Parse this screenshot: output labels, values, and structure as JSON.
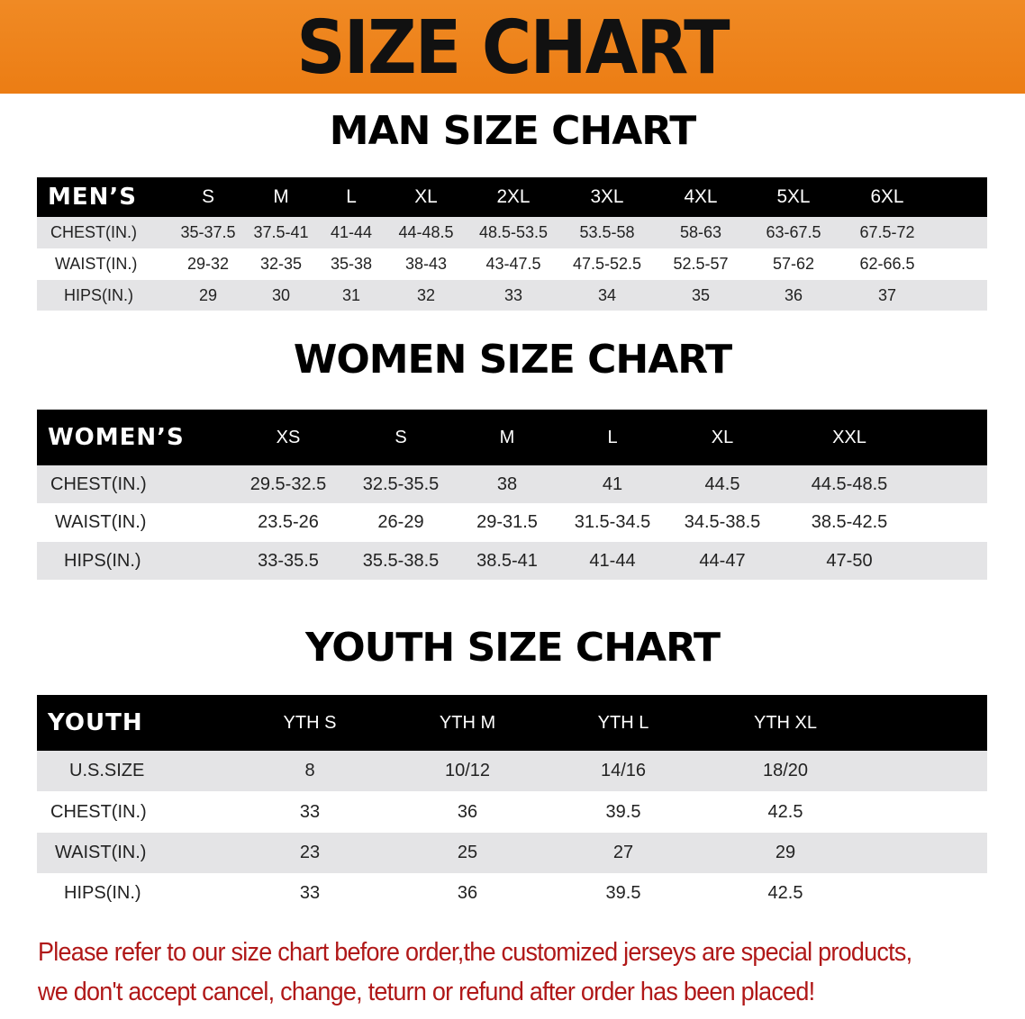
{
  "banner": {
    "title": "SIZE CHART",
    "color": "#ef8420"
  },
  "men": {
    "title": "MAN SIZE CHART",
    "header": "MEN’S",
    "columns": [
      "S",
      "M",
      "L",
      "XL",
      "2XL",
      "3XL",
      "4XL",
      "5XL",
      "6XL"
    ],
    "rows": [
      {
        "label": "CHEST(IN.)",
        "values": [
          "35-37.5",
          "37.5-41",
          "41-44",
          "44-48.5",
          "48.5-53.5",
          "53.5-58",
          "58-63",
          "63-67.5",
          "67.5-72"
        ]
      },
      {
        "label": "WAIST(IN.)",
        "values": [
          "29-32",
          "32-35",
          "35-38",
          "38-43",
          "43-47.5",
          "47.5-52.5",
          "52.5-57",
          "57-62",
          "62-66.5"
        ]
      },
      {
        "label": "HIPS(IN.)",
        "values": [
          "29",
          "30",
          "31",
          "32",
          "33",
          "34",
          "35",
          "36",
          "37"
        ]
      }
    ]
  },
  "women": {
    "title": "WOMEN SIZE CHART",
    "header": "WOMEN’S",
    "columns": [
      "XS",
      "S",
      "M",
      "L",
      "XL",
      "XXL"
    ],
    "rows": [
      {
        "label": "CHEST(IN.)",
        "values": [
          "29.5-32.5",
          "32.5-35.5",
          "38",
          "41",
          "44.5",
          "44.5-48.5"
        ]
      },
      {
        "label": "WAIST(IN.)",
        "values": [
          "23.5-26",
          "26-29",
          "29-31.5",
          "31.5-34.5",
          "34.5-38.5",
          "38.5-42.5"
        ]
      },
      {
        "label": "HIPS(IN.)",
        "values": [
          "33-35.5",
          "35.5-38.5",
          "38.5-41",
          "41-44",
          "44-47",
          "47-50"
        ]
      }
    ]
  },
  "youth": {
    "title": "YOUTH SIZE CHART",
    "header": "YOUTH",
    "columns": [
      "YTH S",
      "YTH M",
      "YTH L",
      "YTH XL"
    ],
    "rows": [
      {
        "label": "U.S.SIZE",
        "values": [
          "8",
          "10/12",
          "14/16",
          "18/20"
        ]
      },
      {
        "label": "CHEST(IN.)",
        "values": [
          "33",
          "36",
          "39.5",
          "42.5"
        ]
      },
      {
        "label": "WAIST(IN.)",
        "values": [
          "23",
          "25",
          "27",
          "29"
        ]
      },
      {
        "label": "HIPS(IN.)",
        "values": [
          "33",
          "36",
          "39.5",
          "42.5"
        ]
      }
    ]
  },
  "notice": {
    "line1": "Please refer to our size chart before order,the customized jerseys are special products,",
    "line2": "we don't accept cancel, change, teturn or refund after order has been placed!",
    "color": "#b01818"
  }
}
